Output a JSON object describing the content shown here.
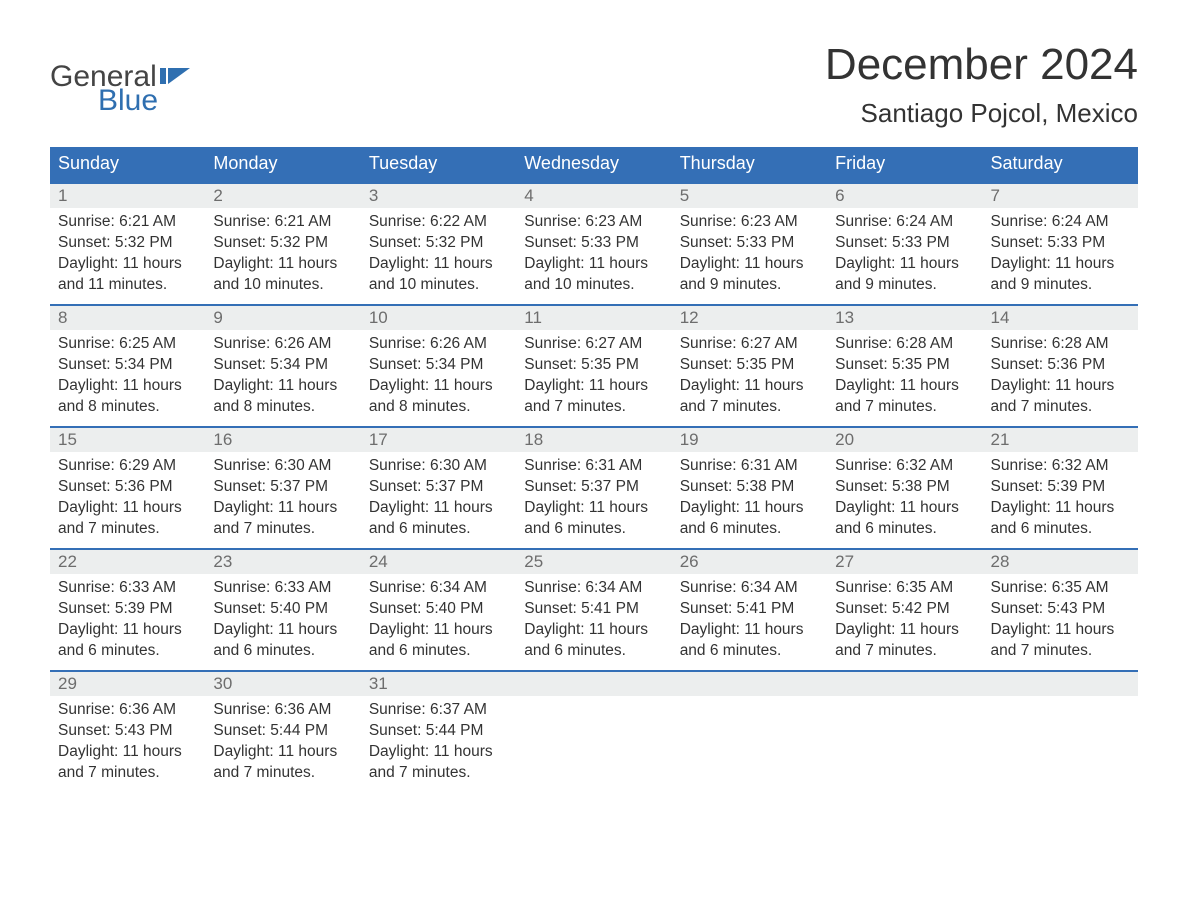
{
  "logo": {
    "text_general": "General",
    "text_blue": "Blue",
    "flag_color": "#2f6fb0"
  },
  "colors": {
    "header_bg": "#346fb6",
    "header_text": "#ffffff",
    "daynum_bg": "#eceeee",
    "daynum_text": "#6d6d6d",
    "body_text": "#333333",
    "row_border": "#346fb6",
    "page_bg": "#ffffff"
  },
  "title": {
    "month": "December 2024",
    "location": "Santiago Pojcol, Mexico"
  },
  "weekdays": [
    "Sunday",
    "Monday",
    "Tuesday",
    "Wednesday",
    "Thursday",
    "Friday",
    "Saturday"
  ],
  "weeks": [
    [
      {
        "n": "1",
        "sr": "Sunrise: 6:21 AM",
        "ss": "Sunset: 5:32 PM",
        "d1": "Daylight: 11 hours",
        "d2": "and 11 minutes."
      },
      {
        "n": "2",
        "sr": "Sunrise: 6:21 AM",
        "ss": "Sunset: 5:32 PM",
        "d1": "Daylight: 11 hours",
        "d2": "and 10 minutes."
      },
      {
        "n": "3",
        "sr": "Sunrise: 6:22 AM",
        "ss": "Sunset: 5:32 PM",
        "d1": "Daylight: 11 hours",
        "d2": "and 10 minutes."
      },
      {
        "n": "4",
        "sr": "Sunrise: 6:23 AM",
        "ss": "Sunset: 5:33 PM",
        "d1": "Daylight: 11 hours",
        "d2": "and 10 minutes."
      },
      {
        "n": "5",
        "sr": "Sunrise: 6:23 AM",
        "ss": "Sunset: 5:33 PM",
        "d1": "Daylight: 11 hours",
        "d2": "and 9 minutes."
      },
      {
        "n": "6",
        "sr": "Sunrise: 6:24 AM",
        "ss": "Sunset: 5:33 PM",
        "d1": "Daylight: 11 hours",
        "d2": "and 9 minutes."
      },
      {
        "n": "7",
        "sr": "Sunrise: 6:24 AM",
        "ss": "Sunset: 5:33 PM",
        "d1": "Daylight: 11 hours",
        "d2": "and 9 minutes."
      }
    ],
    [
      {
        "n": "8",
        "sr": "Sunrise: 6:25 AM",
        "ss": "Sunset: 5:34 PM",
        "d1": "Daylight: 11 hours",
        "d2": "and 8 minutes."
      },
      {
        "n": "9",
        "sr": "Sunrise: 6:26 AM",
        "ss": "Sunset: 5:34 PM",
        "d1": "Daylight: 11 hours",
        "d2": "and 8 minutes."
      },
      {
        "n": "10",
        "sr": "Sunrise: 6:26 AM",
        "ss": "Sunset: 5:34 PM",
        "d1": "Daylight: 11 hours",
        "d2": "and 8 minutes."
      },
      {
        "n": "11",
        "sr": "Sunrise: 6:27 AM",
        "ss": "Sunset: 5:35 PM",
        "d1": "Daylight: 11 hours",
        "d2": "and 7 minutes."
      },
      {
        "n": "12",
        "sr": "Sunrise: 6:27 AM",
        "ss": "Sunset: 5:35 PM",
        "d1": "Daylight: 11 hours",
        "d2": "and 7 minutes."
      },
      {
        "n": "13",
        "sr": "Sunrise: 6:28 AM",
        "ss": "Sunset: 5:35 PM",
        "d1": "Daylight: 11 hours",
        "d2": "and 7 minutes."
      },
      {
        "n": "14",
        "sr": "Sunrise: 6:28 AM",
        "ss": "Sunset: 5:36 PM",
        "d1": "Daylight: 11 hours",
        "d2": "and 7 minutes."
      }
    ],
    [
      {
        "n": "15",
        "sr": "Sunrise: 6:29 AM",
        "ss": "Sunset: 5:36 PM",
        "d1": "Daylight: 11 hours",
        "d2": "and 7 minutes."
      },
      {
        "n": "16",
        "sr": "Sunrise: 6:30 AM",
        "ss": "Sunset: 5:37 PM",
        "d1": "Daylight: 11 hours",
        "d2": "and 7 minutes."
      },
      {
        "n": "17",
        "sr": "Sunrise: 6:30 AM",
        "ss": "Sunset: 5:37 PM",
        "d1": "Daylight: 11 hours",
        "d2": "and 6 minutes."
      },
      {
        "n": "18",
        "sr": "Sunrise: 6:31 AM",
        "ss": "Sunset: 5:37 PM",
        "d1": "Daylight: 11 hours",
        "d2": "and 6 minutes."
      },
      {
        "n": "19",
        "sr": "Sunrise: 6:31 AM",
        "ss": "Sunset: 5:38 PM",
        "d1": "Daylight: 11 hours",
        "d2": "and 6 minutes."
      },
      {
        "n": "20",
        "sr": "Sunrise: 6:32 AM",
        "ss": "Sunset: 5:38 PM",
        "d1": "Daylight: 11 hours",
        "d2": "and 6 minutes."
      },
      {
        "n": "21",
        "sr": "Sunrise: 6:32 AM",
        "ss": "Sunset: 5:39 PM",
        "d1": "Daylight: 11 hours",
        "d2": "and 6 minutes."
      }
    ],
    [
      {
        "n": "22",
        "sr": "Sunrise: 6:33 AM",
        "ss": "Sunset: 5:39 PM",
        "d1": "Daylight: 11 hours",
        "d2": "and 6 minutes."
      },
      {
        "n": "23",
        "sr": "Sunrise: 6:33 AM",
        "ss": "Sunset: 5:40 PM",
        "d1": "Daylight: 11 hours",
        "d2": "and 6 minutes."
      },
      {
        "n": "24",
        "sr": "Sunrise: 6:34 AM",
        "ss": "Sunset: 5:40 PM",
        "d1": "Daylight: 11 hours",
        "d2": "and 6 minutes."
      },
      {
        "n": "25",
        "sr": "Sunrise: 6:34 AM",
        "ss": "Sunset: 5:41 PM",
        "d1": "Daylight: 11 hours",
        "d2": "and 6 minutes."
      },
      {
        "n": "26",
        "sr": "Sunrise: 6:34 AM",
        "ss": "Sunset: 5:41 PM",
        "d1": "Daylight: 11 hours",
        "d2": "and 6 minutes."
      },
      {
        "n": "27",
        "sr": "Sunrise: 6:35 AM",
        "ss": "Sunset: 5:42 PM",
        "d1": "Daylight: 11 hours",
        "d2": "and 7 minutes."
      },
      {
        "n": "28",
        "sr": "Sunrise: 6:35 AM",
        "ss": "Sunset: 5:43 PM",
        "d1": "Daylight: 11 hours",
        "d2": "and 7 minutes."
      }
    ],
    [
      {
        "n": "29",
        "sr": "Sunrise: 6:36 AM",
        "ss": "Sunset: 5:43 PM",
        "d1": "Daylight: 11 hours",
        "d2": "and 7 minutes."
      },
      {
        "n": "30",
        "sr": "Sunrise: 6:36 AM",
        "ss": "Sunset: 5:44 PM",
        "d1": "Daylight: 11 hours",
        "d2": "and 7 minutes."
      },
      {
        "n": "31",
        "sr": "Sunrise: 6:37 AM",
        "ss": "Sunset: 5:44 PM",
        "d1": "Daylight: 11 hours",
        "d2": "and 7 minutes."
      },
      {
        "empty": true
      },
      {
        "empty": true
      },
      {
        "empty": true
      },
      {
        "empty": true
      }
    ]
  ]
}
